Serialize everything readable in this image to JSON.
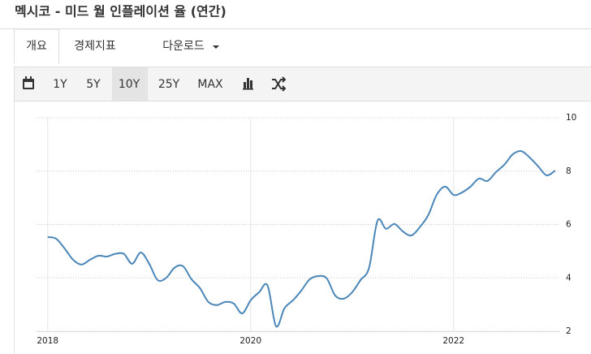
{
  "header": {
    "title": "멕시코 - 미드 월 인플레이션 율 (연간)"
  },
  "tabs": [
    "개요",
    "경제지표",
    "다운로드"
  ],
  "toolbar": [
    "1Y",
    "5Y",
    "10Y",
    "25Y",
    "MAX"
  ],
  "chart_data": {
    "type": "line",
    "x": [
      2018,
      2018.083,
      2018.167,
      2018.25,
      2018.333,
      2018.417,
      2018.5,
      2018.583,
      2018.667,
      2018.75,
      2018.833,
      2018.917,
      2019,
      2019.083,
      2019.167,
      2019.25,
      2019.333,
      2019.417,
      2019.5,
      2019.583,
      2019.667,
      2019.75,
      2019.833,
      2019.917,
      2020,
      2020.083,
      2020.167,
      2020.25,
      2020.333,
      2020.417,
      2020.5,
      2020.583,
      2020.667,
      2020.75,
      2020.833,
      2020.917,
      2021,
      2021.083,
      2021.167,
      2021.25,
      2021.333,
      2021.417,
      2021.5,
      2021.583,
      2021.667,
      2021.75,
      2021.833,
      2021.917,
      2022,
      2022.083,
      2022.167,
      2022.25,
      2022.333,
      2022.417,
      2022.5,
      2022.583,
      2022.667,
      2022.75,
      2022.833,
      2022.917,
      2023
    ],
    "series": [
      {
        "color": "#4a86b8",
        "values": [
          5.53,
          5.47,
          5.1,
          4.68,
          4.5,
          4.68,
          4.83,
          4.8,
          4.9,
          4.9,
          4.53,
          4.95,
          4.53,
          3.92,
          4.0,
          4.38,
          4.44,
          3.95,
          3.62,
          3.1,
          2.98,
          3.1,
          3.04,
          2.67,
          3.16,
          3.46,
          3.71,
          2.19,
          2.86,
          3.16,
          3.53,
          3.95,
          4.07,
          3.98,
          3.34,
          3.22,
          3.46,
          3.92,
          4.38,
          6.14,
          5.84,
          6.02,
          5.74,
          5.59,
          5.9,
          6.35,
          7.11,
          7.42,
          7.11,
          7.2,
          7.42,
          7.72,
          7.63,
          7.96,
          8.24,
          8.63,
          8.75,
          8.51,
          8.18,
          7.84,
          8.02
        ]
      }
    ],
    "xlim": [
      2017.89,
      2023.05
    ],
    "xticks": [
      2018,
      2020,
      2022
    ],
    "ylim": [
      2,
      10
    ],
    "yticks": [
      2,
      4,
      6,
      8,
      10
    ],
    "grid": true
  }
}
